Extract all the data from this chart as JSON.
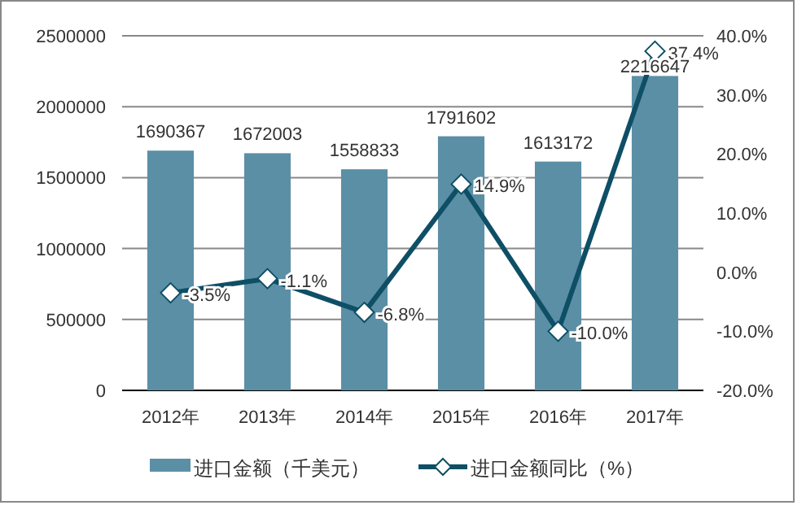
{
  "chart_data": {
    "type": "bar",
    "categories": [
      "2012年",
      "2013年",
      "2014年",
      "2015年",
      "2016年",
      "2017年"
    ],
    "series": [
      {
        "name": "进口金额（千美元）",
        "color": "#5b8fa6",
        "values": [
          1690367,
          1672003,
          1558833,
          1791602,
          1613172,
          2216647
        ],
        "value_labels": [
          "1690367",
          "1672003",
          "1558833",
          "1791602",
          "1613172",
          "2216647"
        ]
      },
      {
        "name": "进口金额同比（%）",
        "type": "line",
        "axis": "y2",
        "color": "#0e4f66",
        "marker": "diamond",
        "values": [
          -3.5,
          -1.1,
          -6.8,
          14.9,
          -10.0,
          37.4
        ],
        "value_labels": [
          "-3.5%",
          "-1.1%",
          "-6.8%",
          "14.9%",
          "-10.0%",
          "37.4%"
        ]
      }
    ],
    "ylim": [
      0,
      2500000
    ],
    "yticks": [
      0,
      500000,
      1000000,
      1500000,
      2000000,
      2500000
    ],
    "y2lim": [
      -20,
      40
    ],
    "y2ticks": [
      {
        "value": -20,
        "label": "-20.0%"
      },
      {
        "value": -10,
        "label": "-10.0%"
      },
      {
        "value": 0,
        "label": "0.0%"
      },
      {
        "value": 10,
        "label": "10.0%"
      },
      {
        "value": 20,
        "label": "20.0%"
      },
      {
        "value": 30,
        "label": "30.0%"
      },
      {
        "value": 40,
        "label": "40.0%"
      }
    ],
    "grid": "y",
    "legend": "bottom"
  }
}
